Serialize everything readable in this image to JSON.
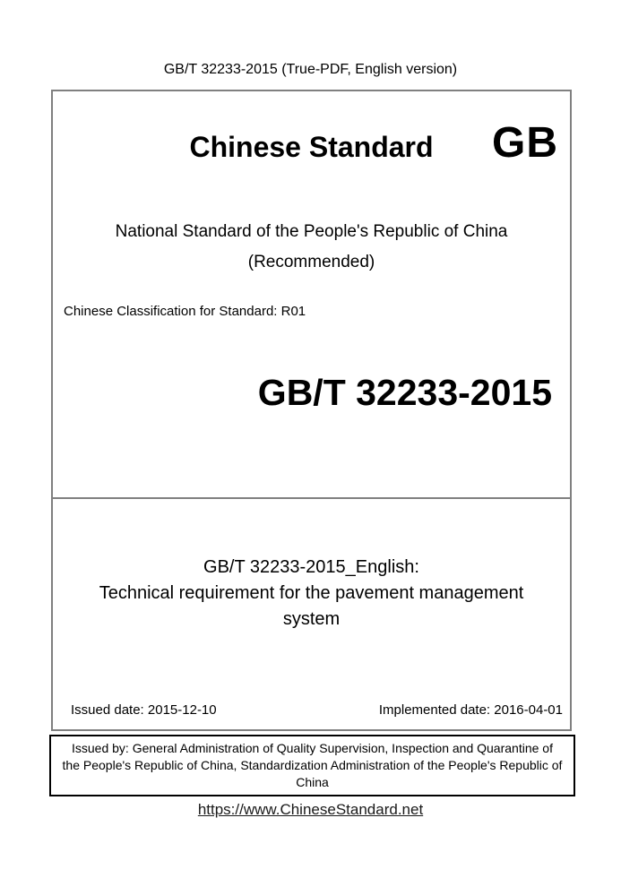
{
  "header": {
    "text": "GB/T 32233-2015 (True-PDF, English version)"
  },
  "brand": {
    "title": "Chinese Standard",
    "logo": "GB"
  },
  "standard": {
    "national_line": "National Standard of the People's Republic of China",
    "recommended": "(Recommended)",
    "classification": "Chinese Classification for Standard: R01",
    "code": "GB/T 32233-2015"
  },
  "english_title": {
    "lines": [
      "GB/T 32233-2015_English:",
      "Technical requirement for the pavement management",
      "system"
    ]
  },
  "dates": {
    "issued": "Issued date: 2015-12-10",
    "implemented": "Implemented date: 2016-04-01"
  },
  "issuer": {
    "lines": [
      "Issued by: General Administration of Quality Supervision, Inspection and Quarantine of",
      "the People's Republic of China, Standardization Administration of the People's Republic of",
      "China"
    ]
  },
  "footer": {
    "link": "https://www.ChineseStandard.net"
  },
  "colors": {
    "main_border": "#808080",
    "issuer_border": "#000000",
    "text": "#000000",
    "link": "#1a1a1a"
  }
}
